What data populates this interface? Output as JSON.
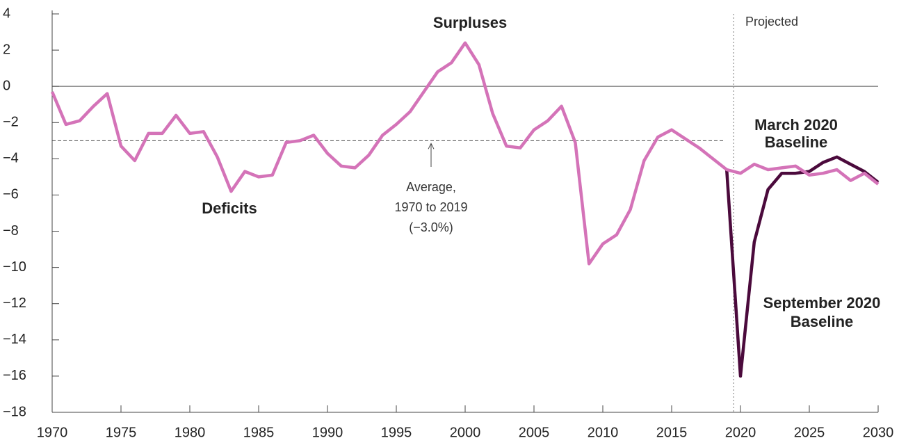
{
  "chart_data": {
    "type": "line",
    "annotations": {
      "surpluses": "Surpluses",
      "deficits": "Deficits",
      "projected": "Projected",
      "average": [
        "Average,",
        "1970 to 2019",
        "(−3.0%)"
      ],
      "march": [
        "March 2020",
        "Baseline"
      ],
      "september": [
        "September 2020",
        "Baseline"
      ]
    },
    "average": -3.0,
    "x": [
      1970,
      1971,
      1972,
      1973,
      1974,
      1975,
      1976,
      1977,
      1978,
      1979,
      1980,
      1981,
      1982,
      1983,
      1984,
      1985,
      1986,
      1987,
      1988,
      1989,
      1990,
      1991,
      1992,
      1993,
      1994,
      1995,
      1996,
      1997,
      1998,
      1999,
      2000,
      2001,
      2002,
      2003,
      2004,
      2005,
      2006,
      2007,
      2008,
      2009,
      2010,
      2011,
      2012,
      2013,
      2014,
      2015,
      2016,
      2017,
      2018,
      2019,
      2020,
      2021,
      2022,
      2023,
      2024,
      2025,
      2026,
      2027,
      2028,
      2029,
      2030
    ],
    "series": [
      {
        "name": "September 2020 Baseline",
        "color": "#4b0a3c",
        "values": [
          null,
          null,
          null,
          null,
          null,
          null,
          null,
          null,
          null,
          null,
          null,
          null,
          null,
          null,
          null,
          null,
          null,
          null,
          null,
          null,
          null,
          null,
          null,
          null,
          null,
          null,
          null,
          null,
          null,
          null,
          null,
          null,
          null,
          null,
          null,
          null,
          null,
          null,
          null,
          null,
          null,
          null,
          null,
          null,
          null,
          null,
          null,
          null,
          null,
          -4.6,
          -16.0,
          -8.6,
          -5.7,
          -4.8,
          -4.8,
          -4.7,
          -4.2,
          -3.9,
          -4.3,
          -4.7,
          -5.3
        ]
      },
      {
        "name": "March 2020 Baseline",
        "color": "#d473b8",
        "values": [
          -0.3,
          -2.1,
          -1.9,
          -1.1,
          -0.4,
          -3.3,
          -4.1,
          -2.6,
          -2.6,
          -1.6,
          -2.6,
          -2.5,
          -3.9,
          -5.8,
          -4.7,
          -5.0,
          -4.9,
          -3.1,
          -3.0,
          -2.7,
          -3.7,
          -4.4,
          -4.5,
          -3.8,
          -2.7,
          -2.1,
          -1.4,
          -0.3,
          0.8,
          1.3,
          2.4,
          1.2,
          -1.5,
          -3.3,
          -3.4,
          -2.4,
          -1.9,
          -1.1,
          -3.1,
          -9.8,
          -8.7,
          -8.2,
          -6.8,
          -4.1,
          -2.8,
          -2.4,
          -2.9,
          -3.4,
          -4.0,
          -4.6,
          -4.8,
          -4.3,
          -4.6,
          -4.5,
          -4.4,
          -4.9,
          -4.8,
          -4.6,
          -5.2,
          -4.8,
          -5.4
        ]
      }
    ],
    "xlim": [
      1970,
      2030
    ],
    "xticks": [
      1970,
      1975,
      1980,
      1985,
      1990,
      1995,
      2000,
      2005,
      2010,
      2015,
      2020,
      2025,
      2030
    ],
    "ylim": [
      -18,
      4
    ],
    "yticks": [
      {
        "value": -18,
        "label": "−18"
      },
      {
        "value": -16,
        "label": "−16"
      },
      {
        "value": -14,
        "label": "−14"
      },
      {
        "value": -12,
        "label": "−12"
      },
      {
        "value": -10,
        "label": "−10"
      },
      {
        "value": -8,
        "label": "−8"
      },
      {
        "value": -6,
        "label": "−6"
      },
      {
        "value": -4,
        "label": "−4"
      },
      {
        "value": -2,
        "label": "−2"
      },
      0,
      2,
      4
    ]
  }
}
